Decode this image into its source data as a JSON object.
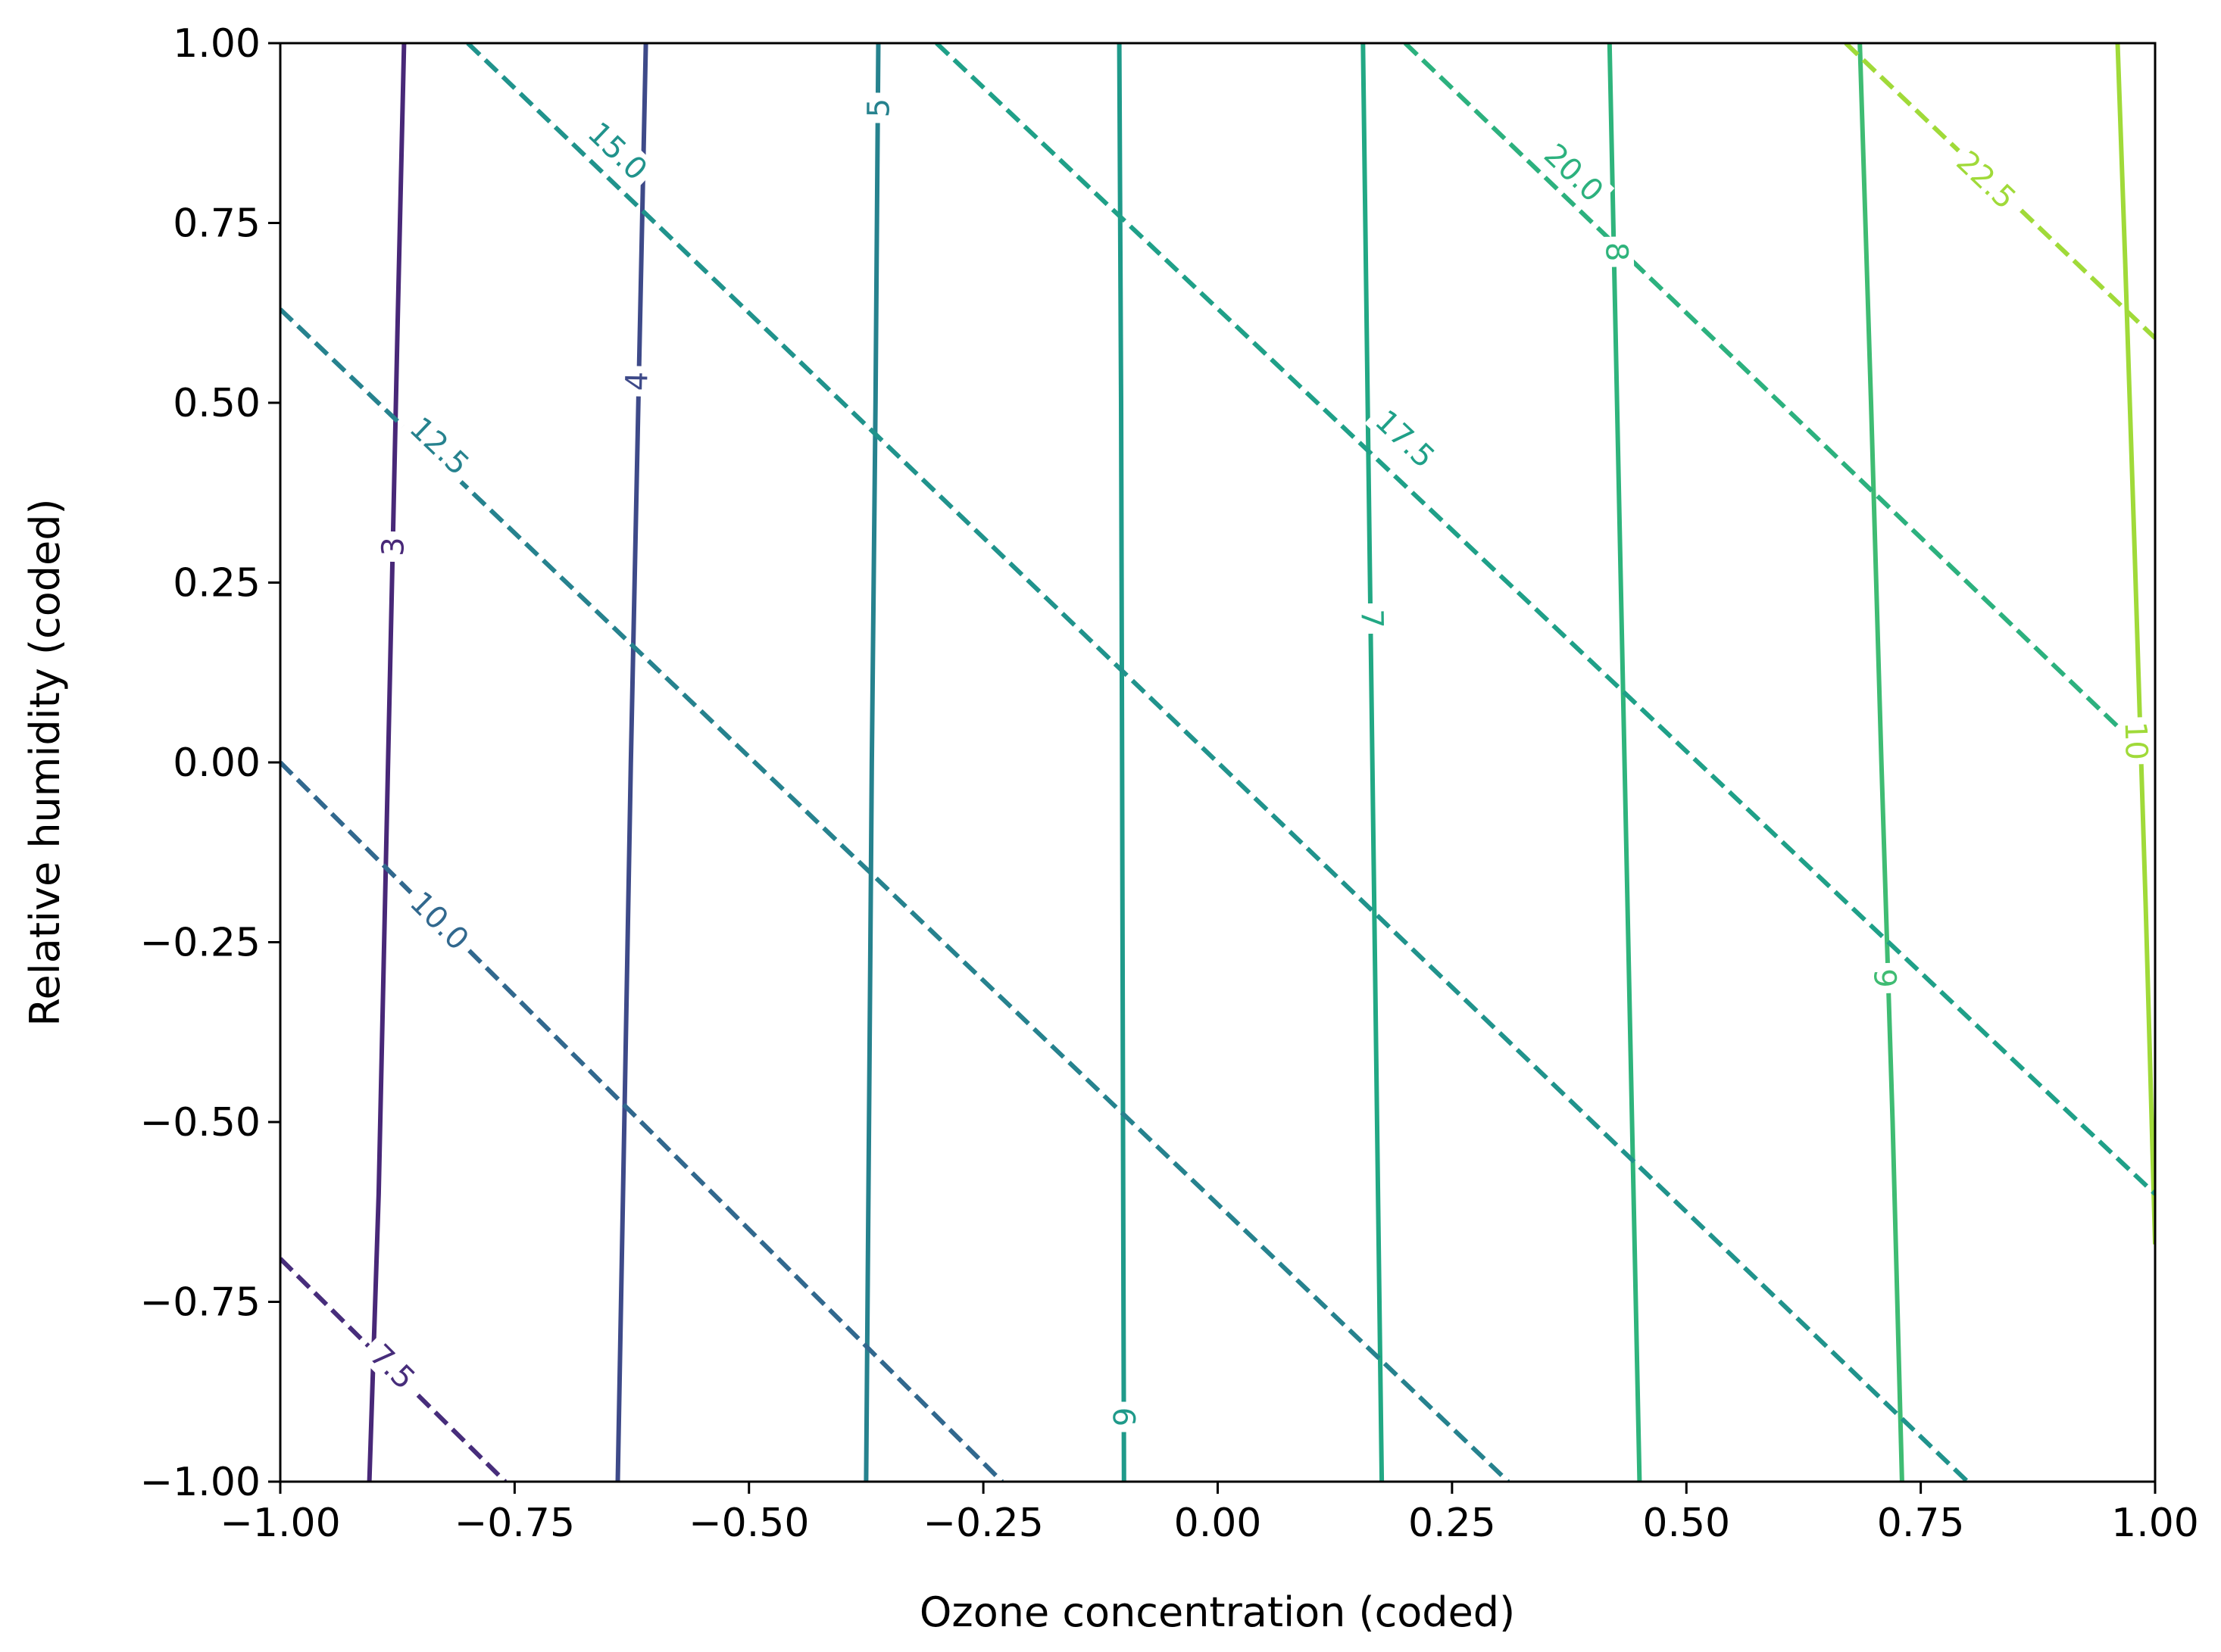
{
  "chart_data": {
    "type": "contour",
    "xlabel": "Ozone concentration (coded)",
    "ylabel": "Relative humidity (coded)",
    "xlim": [
      -1.0,
      1.0
    ],
    "ylim": [
      -1.0,
      1.0
    ],
    "xticks": [
      "−1.00",
      "−0.75",
      "−0.50",
      "−0.25",
      "0.00",
      "0.25",
      "0.50",
      "0.75",
      "1.00"
    ],
    "yticks": [
      "−1.00",
      "−0.75",
      "−0.50",
      "−0.25",
      "0.00",
      "0.25",
      "0.50",
      "0.75",
      "1.00"
    ],
    "grid": false,
    "colormap": "viridis",
    "series": [
      {
        "style": "solid",
        "levels": [
          {
            "label": "3",
            "points": [
              [
                -0.905,
                -1.0
              ],
              [
                -0.895,
                -0.6
              ],
              [
                -0.885,
                0.0
              ],
              [
                -0.875,
                0.6
              ],
              [
                -0.868,
                1.0
              ]
            ],
            "label_at": [
              -0.88,
              0.3
            ],
            "color": "#482878"
          },
          {
            "label": "4",
            "points": [
              [
                -0.64,
                -1.0
              ],
              [
                -0.633,
                -0.5
              ],
              [
                -0.626,
                0.0
              ],
              [
                -0.618,
                0.5
              ],
              [
                -0.61,
                1.0
              ]
            ],
            "label_at": [
              -0.62,
              0.53
            ],
            "color": "#3e4a89"
          },
          {
            "label": "5",
            "points": [
              [
                -0.375,
                -1.0
              ],
              [
                -0.372,
                -0.5
              ],
              [
                -0.369,
                0.0
              ],
              [
                -0.365,
                0.5
              ],
              [
                -0.362,
                1.0
              ]
            ],
            "label_at": [
              -0.362,
              0.91
            ],
            "color": "#26828e"
          },
          {
            "label": "6",
            "points": [
              [
                -0.1,
                -1.0
              ],
              [
                -0.101,
                -0.5
              ],
              [
                -0.102,
                0.0
              ],
              [
                -0.103,
                0.5
              ],
              [
                -0.105,
                1.0
              ]
            ],
            "label_at": [
              -0.1,
              -0.91
            ],
            "color": "#1f9a8a"
          },
          {
            "label": "7",
            "points": [
              [
                0.175,
                -1.0
              ],
              [
                0.17,
                -0.5
              ],
              [
                0.165,
                0.0
              ],
              [
                0.16,
                0.5
              ],
              [
                0.155,
                1.0
              ]
            ],
            "label_at": [
              0.165,
              0.2
            ],
            "color": "#22a884"
          },
          {
            "label": "8",
            "points": [
              [
                0.45,
                -1.0
              ],
              [
                0.442,
                -0.5
              ],
              [
                0.434,
                0.0
              ],
              [
                0.426,
                0.5
              ],
              [
                0.418,
                1.0
              ]
            ],
            "label_at": [
              0.426,
              0.71
            ],
            "color": "#2fb47c"
          },
          {
            "label": "9",
            "points": [
              [
                0.73,
                -1.0
              ],
              [
                0.72,
                -0.5
              ],
              [
                0.708,
                0.0
              ],
              [
                0.697,
                0.5
              ],
              [
                0.685,
                1.0
              ]
            ],
            "label_at": [
              0.712,
              -0.3
            ],
            "color": "#3fbc73"
          },
          {
            "label": "10",
            "points": [
              [
                1.0,
                -0.67
              ],
              [
                0.99,
                -0.2
              ],
              [
                0.978,
                0.3
              ],
              [
                0.968,
                0.7
              ],
              [
                0.96,
                1.0
              ]
            ],
            "label_at": [
              0.98,
              0.03
            ],
            "color": "#a0da39"
          }
        ]
      },
      {
        "style": "dashed",
        "levels": [
          {
            "label": "7.5",
            "points": [
              [
                -1.0,
                -0.69
              ],
              [
                -0.76,
                -1.0
              ]
            ],
            "label_at": [
              -0.88,
              -0.84
            ],
            "color": "#472d7b"
          },
          {
            "label": "10.0",
            "points": [
              [
                -1.0,
                0.0
              ],
              [
                -0.23,
                -1.0
              ]
            ],
            "label_at": [
              -0.83,
              -0.22
            ],
            "color": "#31688e"
          },
          {
            "label": "12.5",
            "points": [
              [
                -1.0,
                0.63
              ],
              [
                0.31,
                -1.0
              ]
            ],
            "label_at": [
              -0.83,
              0.44
            ],
            "color": "#26828e"
          },
          {
            "label": "15.0",
            "points": [
              [
                -0.8,
                1.0
              ],
              [
                0.8,
                -1.0
              ]
            ],
            "label_at": [
              -0.64,
              0.85
            ],
            "color": "#20938c"
          },
          {
            "label": "17.5",
            "points": [
              [
                -0.3,
                1.0
              ],
              [
                1.0,
                -0.6
              ]
            ],
            "label_at": [
              0.2,
              0.45
            ],
            "color": "#1fa088"
          },
          {
            "label": "20.0",
            "points": [
              [
                0.2,
                1.0
              ],
              [
                1.0,
                0.0
              ]
            ],
            "label_at": [
              0.38,
              0.82
            ],
            "color": "#2cb17e"
          },
          {
            "label": "22.5",
            "points": [
              [
                0.67,
                1.0
              ],
              [
                1.0,
                0.59
              ]
            ],
            "label_at": [
              0.82,
              0.81
            ],
            "color": "#a0da39"
          }
        ]
      }
    ]
  }
}
